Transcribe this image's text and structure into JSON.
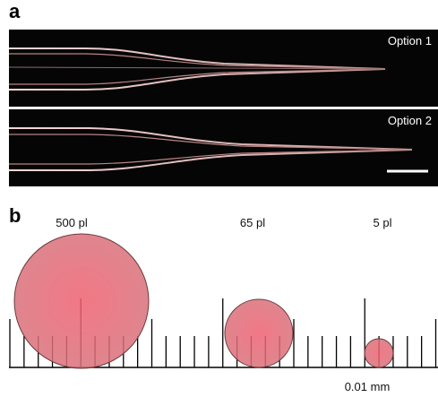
{
  "panel_a": {
    "label": "a",
    "images": [
      {
        "label": "Option 1"
      },
      {
        "label": "Option 2"
      }
    ]
  },
  "panel_b": {
    "label": "b",
    "drops": [
      {
        "label": "500 pl"
      },
      {
        "label": "65 pl"
      },
      {
        "label": "5 pl"
      }
    ],
    "scale_label": "0.01 mm"
  }
}
